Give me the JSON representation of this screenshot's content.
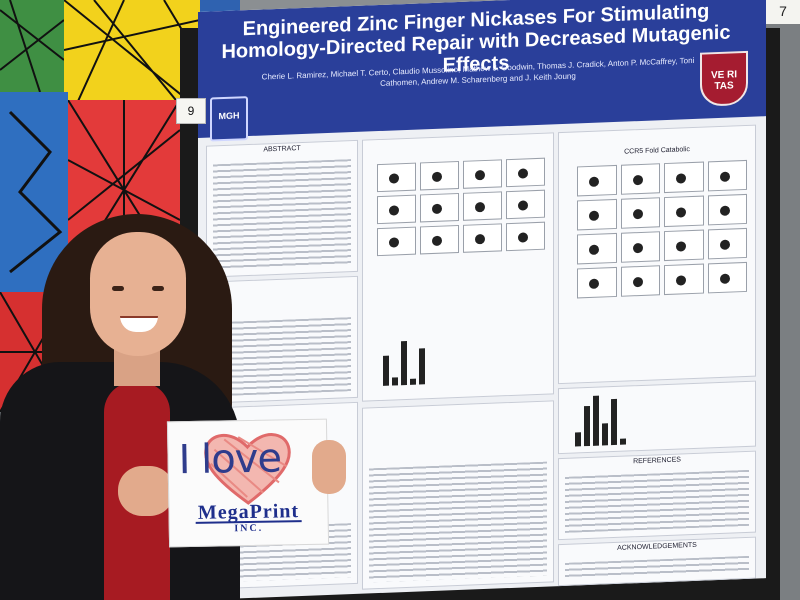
{
  "poster": {
    "title": "Engineered Zinc Finger Nickases For Stimulating Homology-Directed Repair with Decreased Mutagenic Effects",
    "authors": "Cherie L. Ramirez, Michael T. Certo, Claudio Mussolino, Mathew J. Goodwin, Thomas J. Cradick, Anton P. McCaffrey, Toni Cathomen, Andrew M. Scharenberg and J. Keith Joung",
    "left_logo": "MGH",
    "right_logo": "VE RI TAS",
    "sections": {
      "abstract": "ABSTRACT",
      "figure_top": "CCR5 Fold Catabolic",
      "references": "REFERENCES",
      "acknowledgements": "ACKNOWLEDGEMENTS"
    }
  },
  "sign": {
    "line1": "I love",
    "brand": "MegaPrint",
    "brand_suffix": "INC."
  },
  "tags": {
    "board_number": "9",
    "right_number": "7"
  },
  "colors": {
    "poster_header": "#2a3f9a",
    "sign_text": "#2f3c8c",
    "heart": "#e06a6a"
  }
}
